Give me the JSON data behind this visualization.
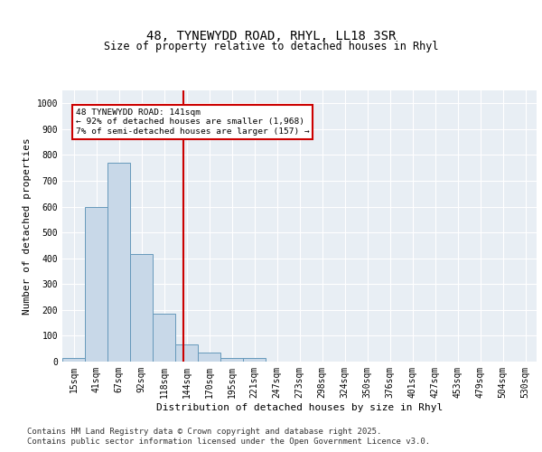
{
  "title_line1": "48, TYNEWYDD ROAD, RHYL, LL18 3SR",
  "title_line2": "Size of property relative to detached houses in Rhyl",
  "xlabel": "Distribution of detached houses by size in Rhyl",
  "ylabel": "Number of detached properties",
  "categories": [
    "15sqm",
    "41sqm",
    "67sqm",
    "92sqm",
    "118sqm",
    "144sqm",
    "170sqm",
    "195sqm",
    "221sqm",
    "247sqm",
    "273sqm",
    "298sqm",
    "324sqm",
    "350sqm",
    "376sqm",
    "401sqm",
    "427sqm",
    "453sqm",
    "479sqm",
    "504sqm",
    "530sqm"
  ],
  "values": [
    15,
    600,
    770,
    415,
    185,
    65,
    35,
    15,
    13,
    0,
    0,
    0,
    0,
    0,
    0,
    0,
    0,
    0,
    0,
    0,
    0
  ],
  "bar_color": "#c8d8e8",
  "bar_edge_color": "#6699bb",
  "vline_x_index": 4.85,
  "vline_color": "#cc0000",
  "annotation_box_text": "48 TYNEWYDD ROAD: 141sqm\n← 92% of detached houses are smaller (1,968)\n7% of semi-detached houses are larger (157) →",
  "annotation_box_color": "#cc0000",
  "annotation_box_facecolor": "white",
  "ylim": [
    0,
    1050
  ],
  "yticks": [
    0,
    100,
    200,
    300,
    400,
    500,
    600,
    700,
    800,
    900,
    1000
  ],
  "background_color": "#e8eef4",
  "footer_line1": "Contains HM Land Registry data © Crown copyright and database right 2025.",
  "footer_line2": "Contains public sector information licensed under the Open Government Licence v3.0.",
  "title_fontsize": 10,
  "label_fontsize": 8,
  "tick_fontsize": 7,
  "footer_fontsize": 6.5
}
